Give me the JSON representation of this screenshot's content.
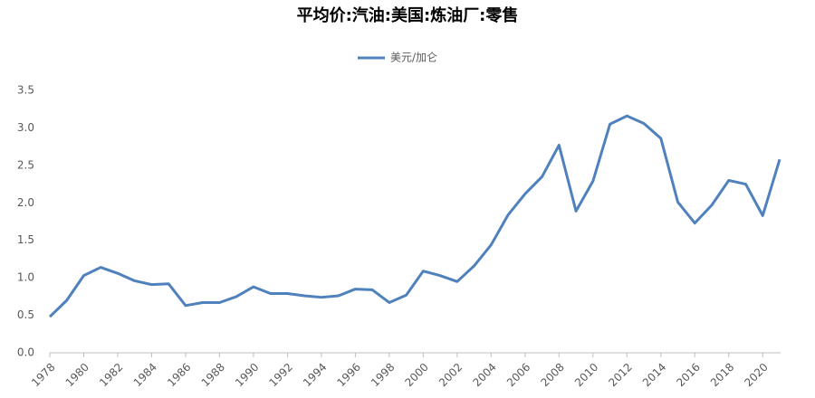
{
  "chart_data": {
    "type": "line",
    "title": "平均价:汽油:美国:炼油厂:零售",
    "x": [
      1978,
      1979,
      1980,
      1981,
      1982,
      1983,
      1984,
      1985,
      1986,
      1987,
      1988,
      1989,
      1990,
      1991,
      1992,
      1993,
      1994,
      1995,
      1996,
      1997,
      1998,
      1999,
      2000,
      2001,
      2002,
      2003,
      2004,
      2005,
      2006,
      2007,
      2008,
      2009,
      2010,
      2011,
      2012,
      2013,
      2014,
      2015,
      2016,
      2017,
      2018,
      2019,
      2020,
      2021
    ],
    "series": [
      {
        "name": "美元/加仑",
        "color": "#4f81bd",
        "values": [
          0.48,
          0.7,
          1.03,
          1.14,
          1.06,
          0.96,
          0.91,
          0.92,
          0.63,
          0.67,
          0.67,
          0.75,
          0.88,
          0.79,
          0.79,
          0.76,
          0.74,
          0.76,
          0.85,
          0.84,
          0.67,
          0.77,
          1.09,
          1.03,
          0.95,
          1.16,
          1.44,
          1.84,
          2.12,
          2.35,
          2.77,
          1.89,
          2.29,
          3.05,
          3.16,
          3.06,
          2.86,
          2.01,
          1.73,
          1.97,
          2.3,
          2.25,
          1.83,
          2.58
        ]
      }
    ],
    "xlim": [
      1978,
      2021
    ],
    "xticks": [
      1978,
      1980,
      1982,
      1984,
      1986,
      1988,
      1990,
      1992,
      1994,
      1996,
      1998,
      2000,
      2002,
      2004,
      2006,
      2008,
      2010,
      2012,
      2014,
      2016,
      2018,
      2020
    ],
    "ylim": [
      0,
      3.5
    ],
    "yticks": [
      {
        "value": 0,
        "label": "0.0"
      },
      0.5,
      {
        "value": 1,
        "label": "1.0"
      },
      1.5,
      {
        "value": 2,
        "label": "2.0"
      },
      2.5,
      {
        "value": 3,
        "label": "3.0"
      },
      3.5
    ],
    "grid": false,
    "legend": "top"
  }
}
